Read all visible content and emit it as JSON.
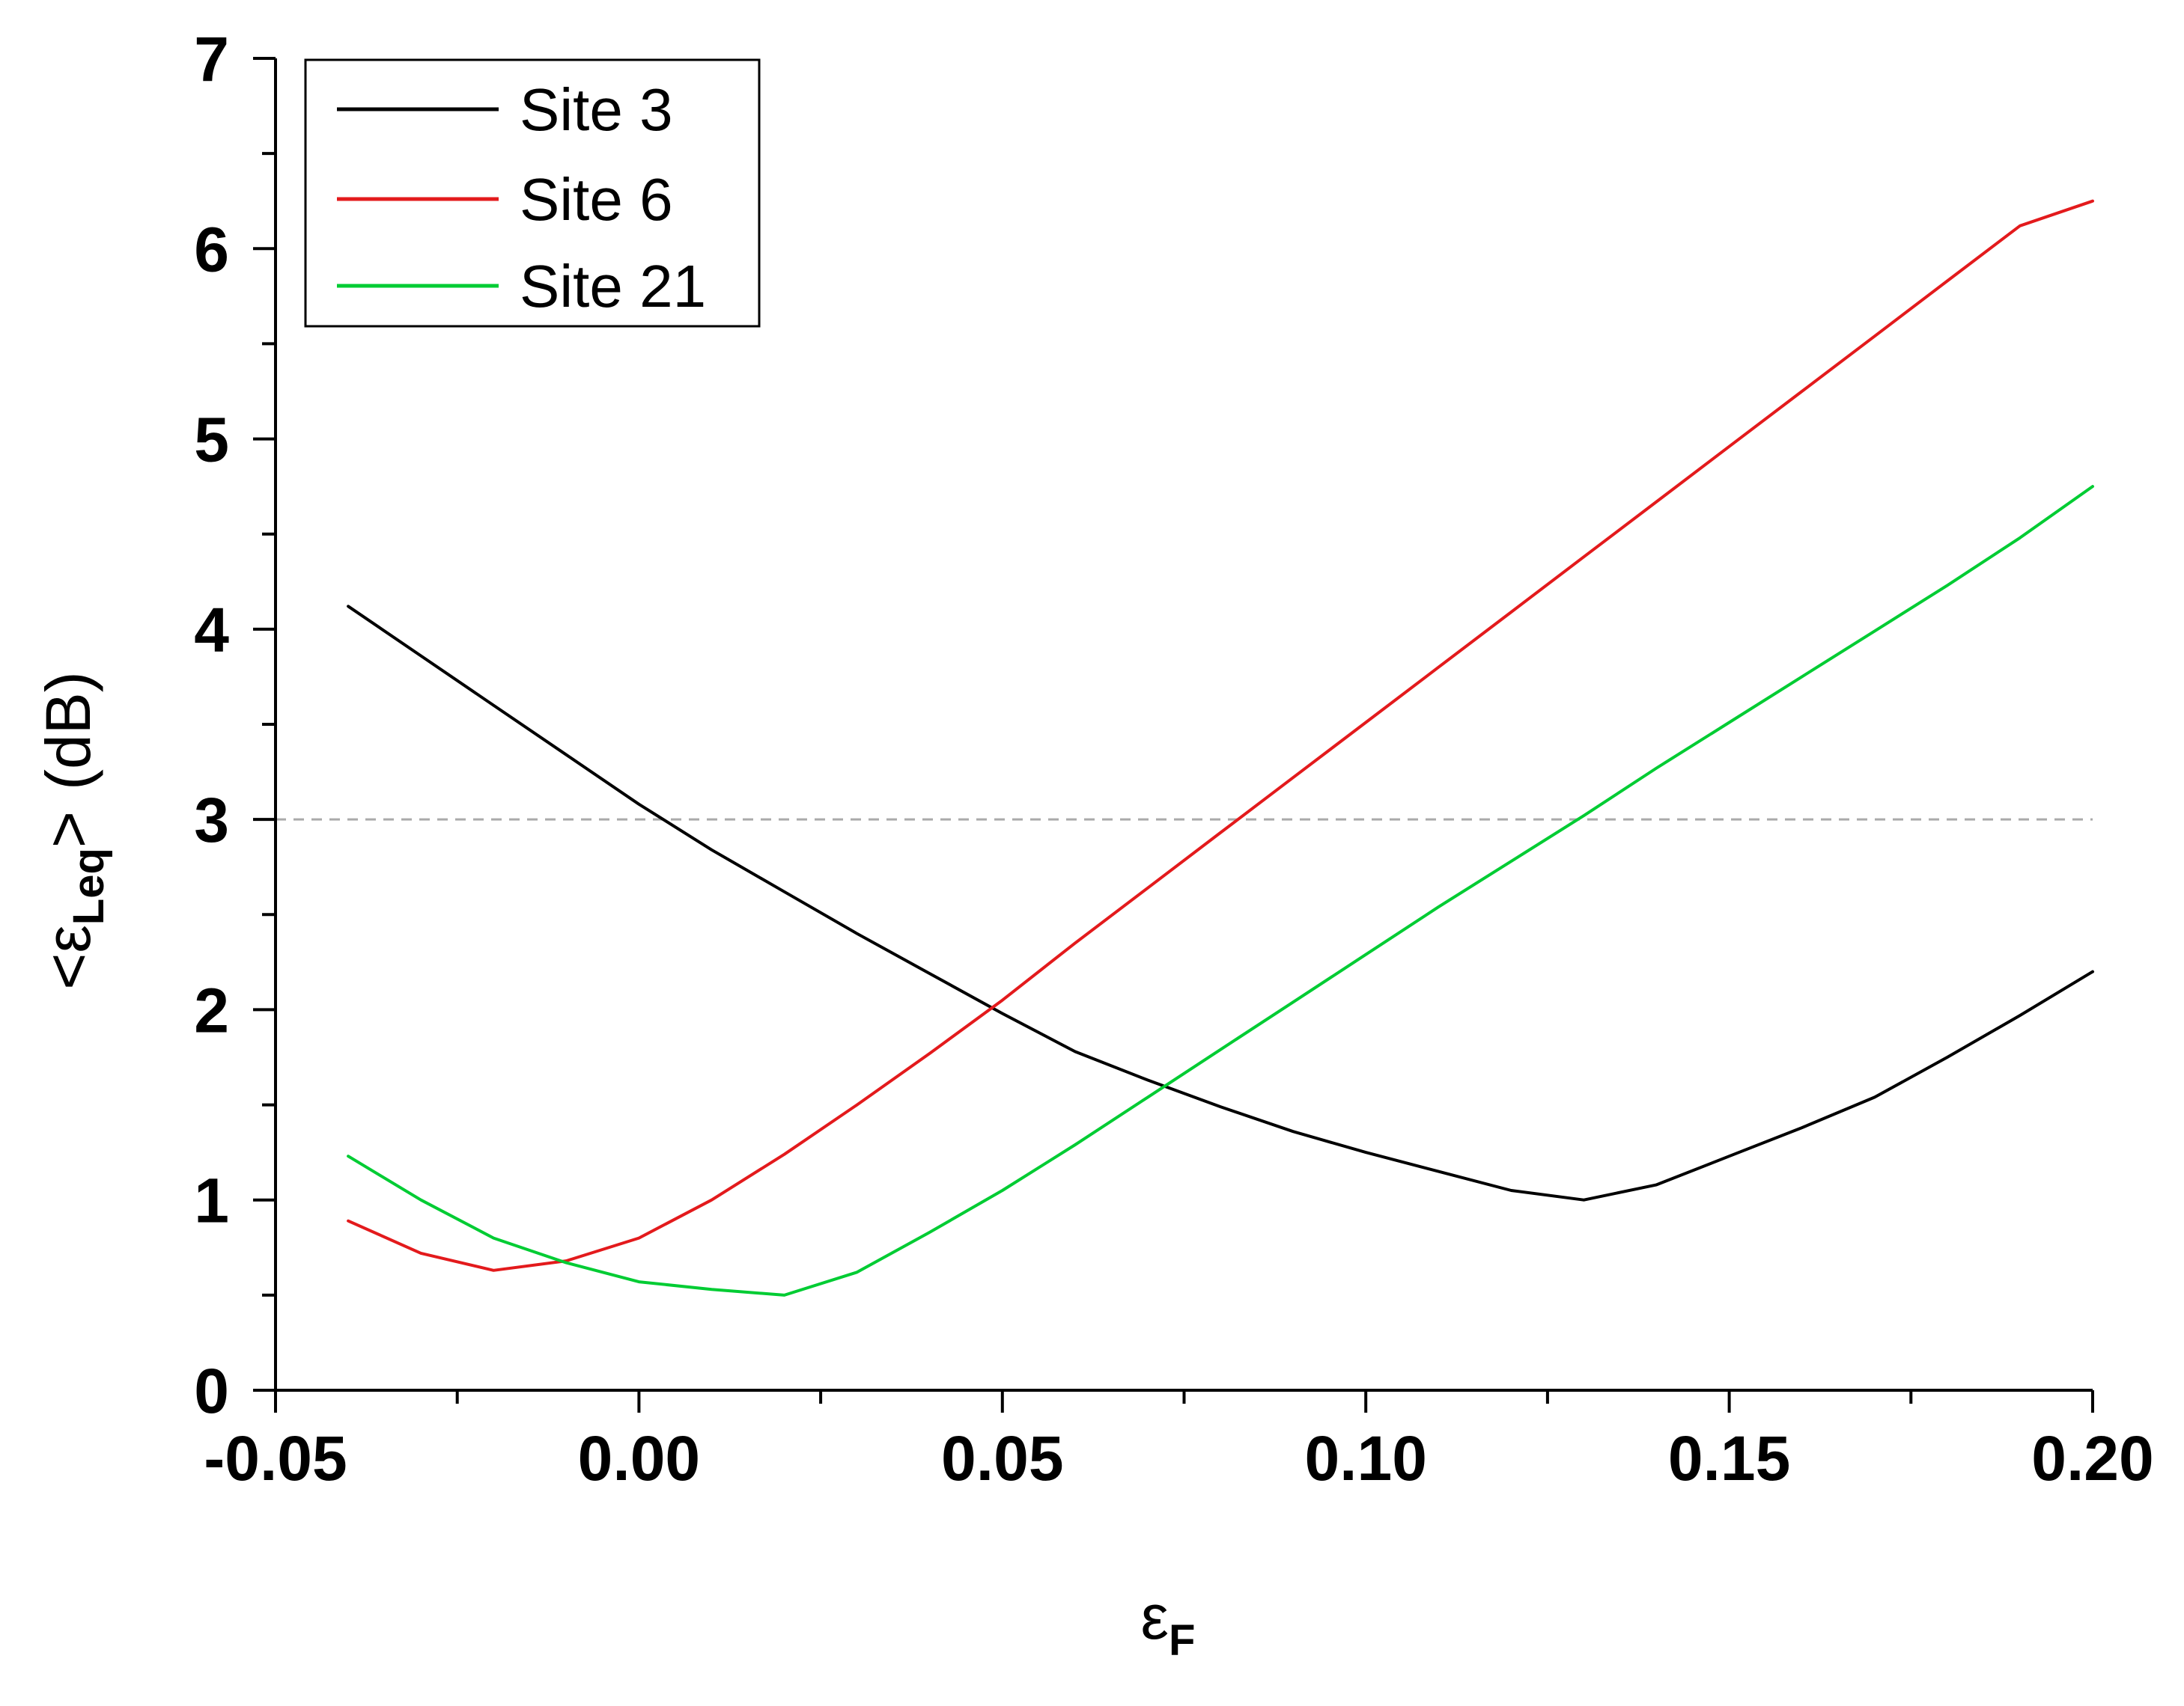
{
  "chart_data": {
    "type": "line",
    "title": "",
    "xlabel": "εF",
    "ylabel": "<εLeq> (dB)",
    "xlabel_main": "ε",
    "xlabel_sub": "F",
    "ylabel_lt": "<ε",
    "ylabel_sub": "Leq",
    "ylabel_gt": ">",
    "ylabel_unit": "(dB)",
    "xlim": [
      -0.05,
      0.2
    ],
    "ylim": [
      0,
      7
    ],
    "xticks": [
      -0.05,
      0.0,
      0.05,
      0.1,
      0.15,
      0.2
    ],
    "xtick_labels": [
      "-0.05",
      "0.00",
      "0.05",
      "0.10",
      "0.15",
      "0.20"
    ],
    "yticks": [
      0,
      1,
      2,
      3,
      4,
      5,
      6,
      7
    ],
    "ytick_labels": [
      "0",
      "1",
      "2",
      "3",
      "4",
      "5",
      "6",
      "7"
    ],
    "reference_line": {
      "y": 3,
      "style": "dashed",
      "color": "#aaaaaa"
    },
    "grid": false,
    "legend_position": "top-left",
    "series": [
      {
        "name": "Site 3",
        "color": "#000000",
        "x": [
          -0.04,
          -0.03,
          -0.02,
          -0.01,
          0.0,
          0.01,
          0.02,
          0.03,
          0.04,
          0.05,
          0.06,
          0.07,
          0.08,
          0.09,
          0.1,
          0.11,
          0.12,
          0.13,
          0.14,
          0.15,
          0.16,
          0.17,
          0.18,
          0.19,
          0.2
        ],
        "values": [
          4.12,
          3.86,
          3.6,
          3.34,
          3.08,
          2.84,
          2.62,
          2.4,
          2.19,
          1.98,
          1.78,
          1.63,
          1.49,
          1.36,
          1.25,
          1.15,
          1.05,
          1.0,
          1.08,
          1.23,
          1.38,
          1.54,
          1.75,
          1.97,
          2.2
        ]
      },
      {
        "name": "Site 6",
        "color": "#e31a1c",
        "x": [
          -0.04,
          -0.03,
          -0.02,
          -0.01,
          0.0,
          0.01,
          0.02,
          0.03,
          0.04,
          0.05,
          0.06,
          0.07,
          0.08,
          0.09,
          0.1,
          0.11,
          0.12,
          0.13,
          0.14,
          0.15,
          0.16,
          0.17,
          0.18,
          0.19,
          0.2
        ],
        "values": [
          0.89,
          0.72,
          0.63,
          0.68,
          0.8,
          1.0,
          1.24,
          1.5,
          1.77,
          2.05,
          2.35,
          2.64,
          2.93,
          3.22,
          3.51,
          3.8,
          4.09,
          4.38,
          4.67,
          4.96,
          5.25,
          5.54,
          5.83,
          6.12,
          6.25
        ]
      },
      {
        "name": "Site 21",
        "color": "#00cc33",
        "x": [
          -0.04,
          -0.03,
          -0.02,
          -0.01,
          0.0,
          0.01,
          0.02,
          0.03,
          0.04,
          0.05,
          0.06,
          0.07,
          0.08,
          0.09,
          0.1,
          0.11,
          0.12,
          0.13,
          0.14,
          0.15,
          0.16,
          0.17,
          0.18,
          0.19,
          0.2
        ],
        "values": [
          1.23,
          1.0,
          0.8,
          0.67,
          0.57,
          0.53,
          0.5,
          0.62,
          0.83,
          1.05,
          1.29,
          1.54,
          1.79,
          2.04,
          2.29,
          2.54,
          2.78,
          3.02,
          3.27,
          3.51,
          3.75,
          3.99,
          4.23,
          4.48,
          4.75
        ]
      }
    ]
  }
}
